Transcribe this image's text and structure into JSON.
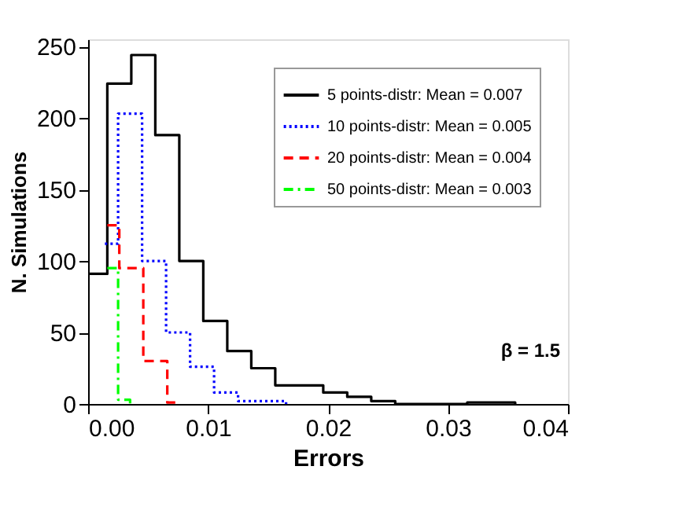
{
  "chart_data": {
    "type": "step",
    "xlabel": "Errors",
    "ylabel": "N. Simulations",
    "xlim": [
      0,
      0.04
    ],
    "xticks": [
      {
        "value": 0,
        "label": "0.00"
      },
      {
        "value": 0.01,
        "label": "0.01"
      },
      {
        "value": 0.02,
        "label": "0.02"
      },
      {
        "value": 0.03,
        "label": "0.03"
      },
      {
        "value": 0.04,
        "label": "0.04"
      }
    ],
    "ylim": [
      0,
      255
    ],
    "yticks": [
      0,
      50,
      100,
      150,
      200,
      250
    ],
    "grid": false,
    "legend": "top right",
    "series": [
      {
        "name": "5 points-distr: Mean = 0.007",
        "color": "#000000",
        "line_style": "solid",
        "x": [
          0,
          0.0016,
          0.0036,
          0.0056,
          0.0076,
          0.0096,
          0.0116,
          0.0136,
          0.0156,
          0.0176,
          0.0196,
          0.0216,
          0.0236,
          0.0256,
          0.0276,
          0.0296,
          0.0316,
          0.0336,
          0.0356
        ],
        "values": [
          91,
          224,
          244,
          188,
          100,
          58,
          37,
          25,
          13,
          13,
          8,
          5,
          2,
          0,
          0,
          0,
          1,
          1,
          0
        ]
      },
      {
        "name": "10 points-distr: Mean = 0.005",
        "color": "#0000ff",
        "line_style": "dotted",
        "x": [
          0.0014,
          0.0025,
          0.0045,
          0.0065,
          0.0085,
          0.0105,
          0.0125,
          0.0145,
          0.0165
        ],
        "values": [
          112,
          203,
          100,
          50,
          26,
          8,
          2,
          2,
          0
        ]
      },
      {
        "name": "20 points-distr: Mean = 0.004",
        "color": "#ff0000",
        "line_style": "dashed",
        "x": [
          0.0016,
          0.0026,
          0.0046,
          0.0066,
          0.0076
        ],
        "values": [
          125,
          95,
          30,
          1,
          0
        ]
      },
      {
        "name": "50 points-distr: Mean = 0.003",
        "color": "#00ff00",
        "line_style": "dashdot",
        "x": [
          0.0016,
          0.0025,
          0.0035
        ],
        "values": [
          95,
          3,
          0
        ]
      }
    ],
    "annotations": [
      "β = 1.5"
    ]
  }
}
